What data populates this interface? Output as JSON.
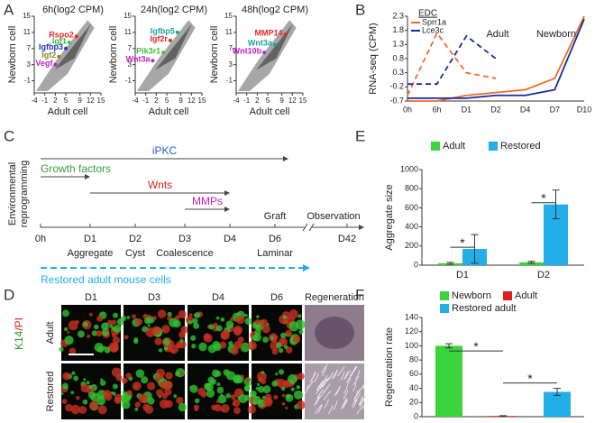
{
  "panels": [
    "A",
    "B",
    "C",
    "D",
    "E",
    "F"
  ],
  "chart_data": [
    {
      "type": "scatter",
      "title": "6h(log2 CPM)",
      "xlabel": "Adult cell",
      "ylabel": "Newborn cell",
      "xlim": [
        -4,
        15
      ],
      "ylim": [
        -4,
        15
      ],
      "xticks": [
        -4,
        -1,
        2,
        5,
        9,
        12,
        15
      ],
      "yticks": [
        -1,
        3,
        7,
        11,
        15
      ],
      "series": [
        {
          "name": "Rspo2",
          "color": "#e5262a",
          "x": [
            8
          ],
          "values": [
            10
          ]
        },
        {
          "name": "Igf1",
          "color": "#3fbf3f",
          "x": [
            6
          ],
          "values": [
            8.5
          ]
        },
        {
          "name": "Igfbp3",
          "color": "#2233cc",
          "x": [
            5
          ],
          "values": [
            7
          ]
        },
        {
          "name": "Igf2",
          "color": "#8a8a20",
          "x": [
            3
          ],
          "values": [
            5
          ]
        },
        {
          "name": "Vegf",
          "color": "#c020c0",
          "x": [
            2
          ],
          "values": [
            3
          ]
        }
      ]
    },
    {
      "type": "scatter",
      "title": "24h(log2 CPM)",
      "xlabel": "Adult cell",
      "ylabel": "Newborn cell",
      "xlim": [
        -4,
        15
      ],
      "ylim": [
        -4,
        15
      ],
      "xticks": [
        -4,
        -1,
        2,
        5,
        9,
        12,
        15
      ],
      "yticks": [
        -1,
        3,
        7,
        11,
        15
      ],
      "series": [
        {
          "name": "Igfbp5",
          "color": "#20a0a0",
          "x": [
            8
          ],
          "values": [
            11
          ]
        },
        {
          "name": "Igf2r",
          "color": "#e5262a",
          "x": [
            6
          ],
          "values": [
            9
          ]
        },
        {
          "name": "Pik3r1",
          "color": "#3fbf3f",
          "x": [
            4
          ],
          "values": [
            6
          ]
        },
        {
          "name": "Wnt3a",
          "color": "#c020c0",
          "x": [
            1
          ],
          "values": [
            4
          ]
        }
      ]
    },
    {
      "type": "scatter",
      "title": "48h(log2 CPM)",
      "xlabel": "Adult cell",
      "ylabel": "Newborn cell",
      "xlim": [
        -4,
        15
      ],
      "ylim": [
        -4,
        15
      ],
      "xticks": [
        -4,
        -1,
        2,
        5,
        9,
        12,
        15
      ],
      "yticks": [
        -1,
        3,
        7,
        11,
        15
      ],
      "series": [
        {
          "name": "MMP14",
          "color": "#e5262a",
          "x": [
            10
          ],
          "values": [
            10.5
          ]
        },
        {
          "name": "Wnt3a",
          "color": "#20a0a0",
          "x": [
            7
          ],
          "values": [
            8
          ]
        },
        {
          "name": "Wnt10b",
          "color": "#c020c0",
          "x": [
            4
          ],
          "values": [
            6
          ]
        }
      ]
    },
    {
      "type": "line",
      "ylabel": "RNA-seq (CPM)",
      "legend_title": "EDC",
      "annotations": [
        "Adult",
        "Newborn"
      ],
      "categories": [
        "0h",
        "6h",
        "D1",
        "D2",
        "D4",
        "D7",
        "D10"
      ],
      "ylim": [
        -0.7,
        2.3
      ],
      "yticks": [
        -0.7,
        -0.2,
        0.3,
        0.8,
        1.3,
        1.8,
        2.3
      ],
      "series": [
        {
          "name": "Sprr1a",
          "group": "Adult",
          "color": "#f06a2a",
          "dashed": true,
          "values": [
            -0.5,
            1.7,
            0.3,
            0.1,
            null,
            null,
            null
          ]
        },
        {
          "name": "Lce3c",
          "group": "Adult",
          "color": "#1a2a9a",
          "dashed": true,
          "values": [
            -0.1,
            -0.1,
            1.6,
            0.8,
            null,
            null,
            null
          ]
        },
        {
          "name": "Sprr1a",
          "group": "Newborn",
          "color": "#f06a2a",
          "dashed": false,
          "values": [
            -0.7,
            -0.7,
            -0.5,
            -0.4,
            -0.3,
            0.1,
            2.3
          ]
        },
        {
          "name": "Lce3c",
          "group": "Newborn",
          "color": "#1a2a9a",
          "dashed": false,
          "values": [
            -0.6,
            -0.6,
            -0.6,
            -0.5,
            -0.5,
            -0.3,
            2.2
          ]
        }
      ]
    },
    {
      "type": "bar",
      "ylabel": "Aggregate size",
      "categories": [
        "D1",
        "D2"
      ],
      "ylim": [
        0,
        1000
      ],
      "yticks": [
        0,
        200,
        400,
        600,
        800,
        1000
      ],
      "annotations": [
        "*",
        "*"
      ],
      "series": [
        {
          "name": "Adult",
          "color": "#3cd43c",
          "values": [
            20,
            30
          ],
          "errors": [
            10,
            10
          ]
        },
        {
          "name": "Restored",
          "color": "#22aee8",
          "values": [
            170,
            635
          ],
          "errors": [
            150,
            150
          ]
        }
      ]
    },
    {
      "type": "bar",
      "ylabel": "Regeneration rate",
      "categories": [
        null,
        null,
        null
      ],
      "ylim": [
        0,
        140
      ],
      "yticks": [
        0,
        20,
        40,
        60,
        80,
        100,
        120,
        140
      ],
      "annotations": [
        "*",
        "*"
      ],
      "series": [
        {
          "name": "Newborn",
          "color": "#3cd43c",
          "values": [
            100,
            null,
            null
          ],
          "errors": [
            3,
            null,
            null
          ]
        },
        {
          "name": "Adult",
          "color": "#e02020",
          "values": [
            null,
            1,
            null
          ],
          "errors": [
            null,
            0.5,
            null
          ]
        },
        {
          "name": "Restored adult",
          "color": "#22aee8",
          "values": [
            null,
            null,
            35
          ],
          "errors": [
            null,
            null,
            5
          ]
        }
      ]
    }
  ],
  "timeline": {
    "ylabel": [
      "Environmental",
      "reprogramming"
    ],
    "arrows": [
      {
        "label": "iPKC",
        "color": "#2a5bd7"
      },
      {
        "label": "Growth factors",
        "color": "#3a9a3a"
      },
      {
        "label": "Wnts",
        "color": "#e02020"
      },
      {
        "label": "MMPs",
        "color": "#c020c0"
      }
    ],
    "ticks": [
      "0h",
      "D1",
      "D2",
      "D3",
      "D4",
      "D6",
      "D42"
    ],
    "stages": [
      "Aggregate",
      "Cyst",
      "Coalescence",
      "Laminar"
    ],
    "events": [
      "Graft",
      "Observation"
    ],
    "cells": "Restored adult mouse cells",
    "cells_color": "#22aee8"
  },
  "images": {
    "columns": [
      "D1",
      "D3",
      "D4",
      "D6",
      "Regeneration"
    ],
    "rows": [
      "Adult",
      "Restored"
    ],
    "stain": {
      "green": "K14",
      "sep": "/",
      "red": "PI"
    }
  }
}
